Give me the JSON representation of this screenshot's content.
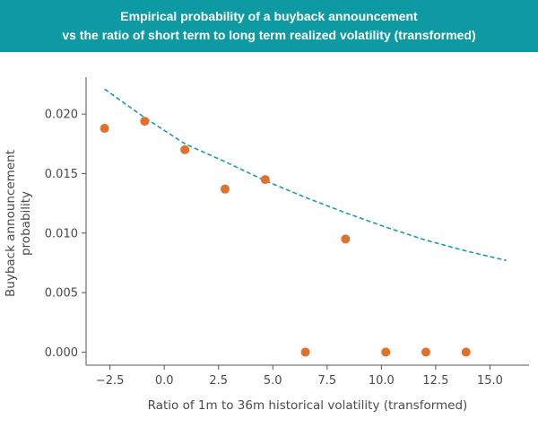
{
  "chart_data": {
    "type": "scatter",
    "title_lines": [
      "Empirical probability of a buyback announcement",
      "vs the ratio of short term to long term realized volatility (transformed)"
    ],
    "xlabel": "Ratio of 1m to 36m historical volatility (transformed)",
    "ylabel_lines": [
      "Buyback announcement",
      "probability"
    ],
    "xlim": [
      -3.6,
      16.8
    ],
    "ylim": [
      -0.0011,
      0.0231
    ],
    "xticks": [
      -2.5,
      0.0,
      2.5,
      5.0,
      7.5,
      10.0,
      12.5,
      15.0
    ],
    "xtick_labels": [
      "−2.5",
      "0.0",
      "2.5",
      "5.0",
      "7.5",
      "10.0",
      "12.5",
      "15.0"
    ],
    "yticks": [
      0.0,
      0.005,
      0.01,
      0.015,
      0.02
    ],
    "ytick_labels": [
      "0.000",
      "0.005",
      "0.010",
      "0.015",
      "0.020"
    ],
    "grid": false,
    "colors": {
      "points": "#e0712a",
      "fit": "#1f9ba8",
      "header": "#0e9aa2"
    },
    "series": [
      {
        "kind": "points",
        "x": [
          -2.75,
          -0.9,
          0.95,
          2.8,
          4.65,
          6.5,
          8.35,
          10.2,
          12.05,
          13.9
        ],
        "y": [
          0.0188,
          0.0194,
          0.017,
          0.0137,
          0.0145,
          0.0,
          0.0095,
          0.0,
          0.0,
          0.0
        ]
      },
      {
        "kind": "fit_line",
        "style": "dashed",
        "x": [
          -2.75,
          -0.9,
          0.95,
          2.8,
          4.65,
          6.5,
          8.35,
          10.2,
          12.05,
          13.9,
          15.75
        ],
        "y": [
          0.0221,
          0.0197,
          0.0175,
          0.016,
          0.0144,
          0.013,
          0.0117,
          0.0105,
          0.0094,
          0.0085,
          0.0077
        ]
      }
    ]
  }
}
